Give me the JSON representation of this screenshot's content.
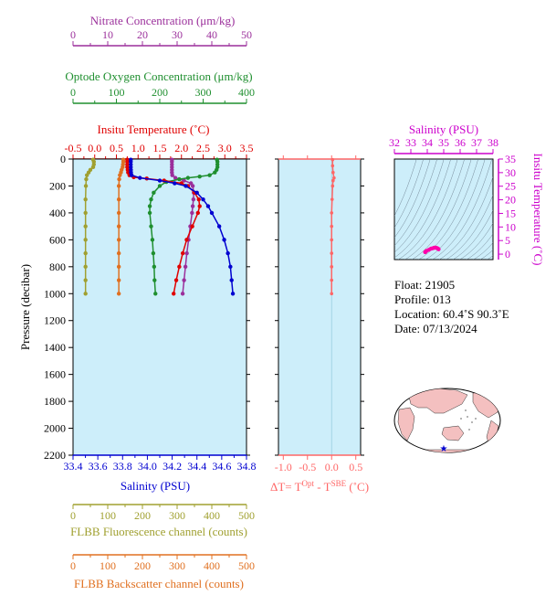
{
  "colors": {
    "nitrate": "#9b2f9b",
    "oxygen": "#1f8f2f",
    "temperature": "#e00000",
    "salinity": "#0000d0",
    "fluorescence": "#a0a030",
    "backscatter": "#e07020",
    "delta_t": "#ff6666",
    "ts_axis": "#cc00cc",
    "panel_bg": "#cdeefa"
  },
  "chart_data": [
    {
      "id": "profile",
      "type": "line",
      "ylabel": "Pressure (decibar)",
      "ylim": [
        2200,
        0
      ],
      "yticks": [
        0,
        200,
        400,
        600,
        800,
        1000,
        1200,
        1400,
        1600,
        1800,
        2000,
        2200
      ],
      "axes": {
        "nitrate": {
          "label": "Nitrate Concentration (μm/kg)",
          "range": [
            0,
            50
          ],
          "ticks": [
            0,
            10,
            20,
            30,
            40,
            50
          ]
        },
        "oxygen": {
          "label": "Optode Oxygen Concentration (μm/kg)",
          "range": [
            0,
            400
          ],
          "ticks": [
            0,
            100,
            200,
            300,
            400
          ]
        },
        "temperature": {
          "label": "Insitu Temperature (˚C)",
          "range": [
            -0.5,
            3.5
          ],
          "ticks": [
            "-0.5",
            "0.0",
            "0.5",
            "1.0",
            "1.5",
            "2.0",
            "2.5",
            "3.0",
            "3.5"
          ]
        },
        "salinity": {
          "label": "Salinity (PSU)",
          "range": [
            33.4,
            34.8
          ],
          "ticks": [
            "33.4",
            "33.6",
            "33.8",
            "34.0",
            "34.2",
            "34.4",
            "34.6",
            "34.8"
          ]
        },
        "fluorescence": {
          "label": "FLBB Fluorescence channel (counts)",
          "range": [
            0,
            500
          ],
          "ticks": [
            0,
            100,
            200,
            300,
            400,
            500
          ]
        },
        "backscatter": {
          "label": "FLBB Backscatter channel (counts)",
          "range": [
            0,
            500
          ],
          "ticks": [
            0,
            100,
            200,
            300,
            400,
            500
          ]
        }
      },
      "series": [
        {
          "key": "nitrate",
          "pressure": [
            5,
            20,
            40,
            60,
            80,
            100,
            120,
            140,
            160,
            180,
            200,
            250,
            300,
            350,
            400,
            500,
            600,
            700,
            800,
            900,
            1000
          ],
          "values": [
            28.5,
            28.5,
            28.5,
            28.5,
            28.5,
            28.5,
            28.6,
            29.5,
            32.0,
            34.0,
            34.5,
            34.8,
            34.7,
            34.5,
            34.3,
            33.8,
            33.3,
            32.8,
            32.4,
            32.0,
            31.6
          ]
        },
        {
          "key": "oxygen",
          "pressure": [
            5,
            20,
            40,
            60,
            80,
            100,
            120,
            130,
            140,
            150,
            170,
            200,
            250,
            300,
            350,
            400,
            500,
            600,
            700,
            800,
            900,
            1000
          ],
          "values": [
            332,
            333,
            333,
            333,
            331,
            327,
            315,
            292,
            265,
            245,
            215,
            200,
            186,
            180,
            177,
            177,
            180,
            183,
            185,
            187,
            188,
            190
          ]
        },
        {
          "key": "temperature",
          "pressure": [
            5,
            20,
            40,
            60,
            80,
            100,
            120,
            135,
            145,
            160,
            180,
            200,
            250,
            300,
            350,
            400,
            500,
            600,
            700,
            800,
            900,
            1000
          ],
          "values": [
            0.75,
            0.75,
            0.75,
            0.75,
            0.76,
            0.77,
            0.8,
            0.9,
            1.2,
            1.6,
            2.0,
            2.15,
            2.3,
            2.4,
            2.42,
            2.38,
            2.25,
            2.12,
            2.03,
            1.95,
            1.88,
            1.82
          ]
        },
        {
          "key": "salinity",
          "pressure": [
            5,
            20,
            40,
            60,
            80,
            100,
            120,
            140,
            160,
            180,
            200,
            250,
            300,
            350,
            400,
            500,
            600,
            700,
            800,
            900,
            1000
          ],
          "values": [
            33.866,
            33.866,
            33.866,
            33.866,
            33.867,
            33.868,
            33.872,
            33.94,
            34.1,
            34.22,
            34.31,
            34.4,
            34.45,
            34.49,
            34.52,
            34.58,
            34.62,
            34.65,
            34.67,
            34.68,
            34.69
          ]
        },
        {
          "key": "fluorescence",
          "pressure": [
            5,
            20,
            40,
            60,
            80,
            100,
            120,
            150,
            200,
            300,
            400,
            500,
            600,
            700,
            800,
            900,
            1000
          ],
          "values": [
            58,
            60,
            60,
            58,
            50,
            45,
            40,
            38,
            37,
            36,
            36,
            36,
            36,
            36,
            36,
            36,
            36
          ]
        },
        {
          "key": "backscatter",
          "pressure": [
            5,
            20,
            40,
            60,
            80,
            100,
            120,
            150,
            200,
            300,
            400,
            500,
            600,
            700,
            800,
            900,
            1000
          ],
          "values": [
            145,
            145,
            144,
            143,
            140,
            138,
            135,
            133,
            132,
            132,
            132,
            132,
            132,
            132,
            132,
            132,
            132
          ]
        }
      ]
    },
    {
      "id": "delta_t",
      "type": "line",
      "xlabel": "ΔT= T",
      "xlabel_sup1": "Opt",
      "xlabel_mid": " - T",
      "xlabel_sup2": "SBE",
      "xlabel_tail": " (˚C)",
      "xlim": [
        -1.1,
        0.6
      ],
      "xticks": [
        "-1.0",
        "-0.5",
        "0.0",
        "0.5"
      ],
      "series": [
        {
          "name": "",
          "pressure": [
            5,
            50,
            100,
            140,
            160,
            200,
            300,
            400,
            500,
            600,
            700,
            800,
            900,
            1000
          ],
          "values": [
            0.02,
            0.02,
            0.03,
            0.05,
            0.03,
            0.02,
            0.01,
            0.0,
            0.0,
            0.0,
            0.0,
            0.0,
            0.0,
            0.0
          ]
        }
      ]
    },
    {
      "id": "ts",
      "type": "scatter",
      "xlabel": "Salinity (PSU)",
      "ylabel": "Insitu Temperature (˚C)",
      "xlim": [
        32,
        38
      ],
      "ylim": [
        -2,
        35
      ],
      "xticks": [
        32,
        33,
        34,
        35,
        36,
        37,
        38
      ],
      "yticks": [
        0,
        5,
        10,
        15,
        20,
        25,
        30,
        35
      ],
      "points": {
        "salinity": [
          33.87,
          33.88,
          33.95,
          34.1,
          34.22,
          34.31,
          34.4,
          34.45,
          34.5,
          34.58,
          34.63,
          34.67,
          34.69
        ],
        "temperature": [
          0.75,
          0.8,
          1.2,
          1.6,
          2.0,
          2.15,
          2.3,
          2.4,
          2.4,
          2.25,
          2.1,
          1.95,
          1.82
        ]
      }
    }
  ],
  "info": {
    "float": "Float:  21905",
    "profile": "Profile:  013",
    "location": "Location:  60.4˚S  90.3˚E",
    "date": "Date:  07/13/2024"
  },
  "map": {
    "marker_icon": "star-icon"
  }
}
